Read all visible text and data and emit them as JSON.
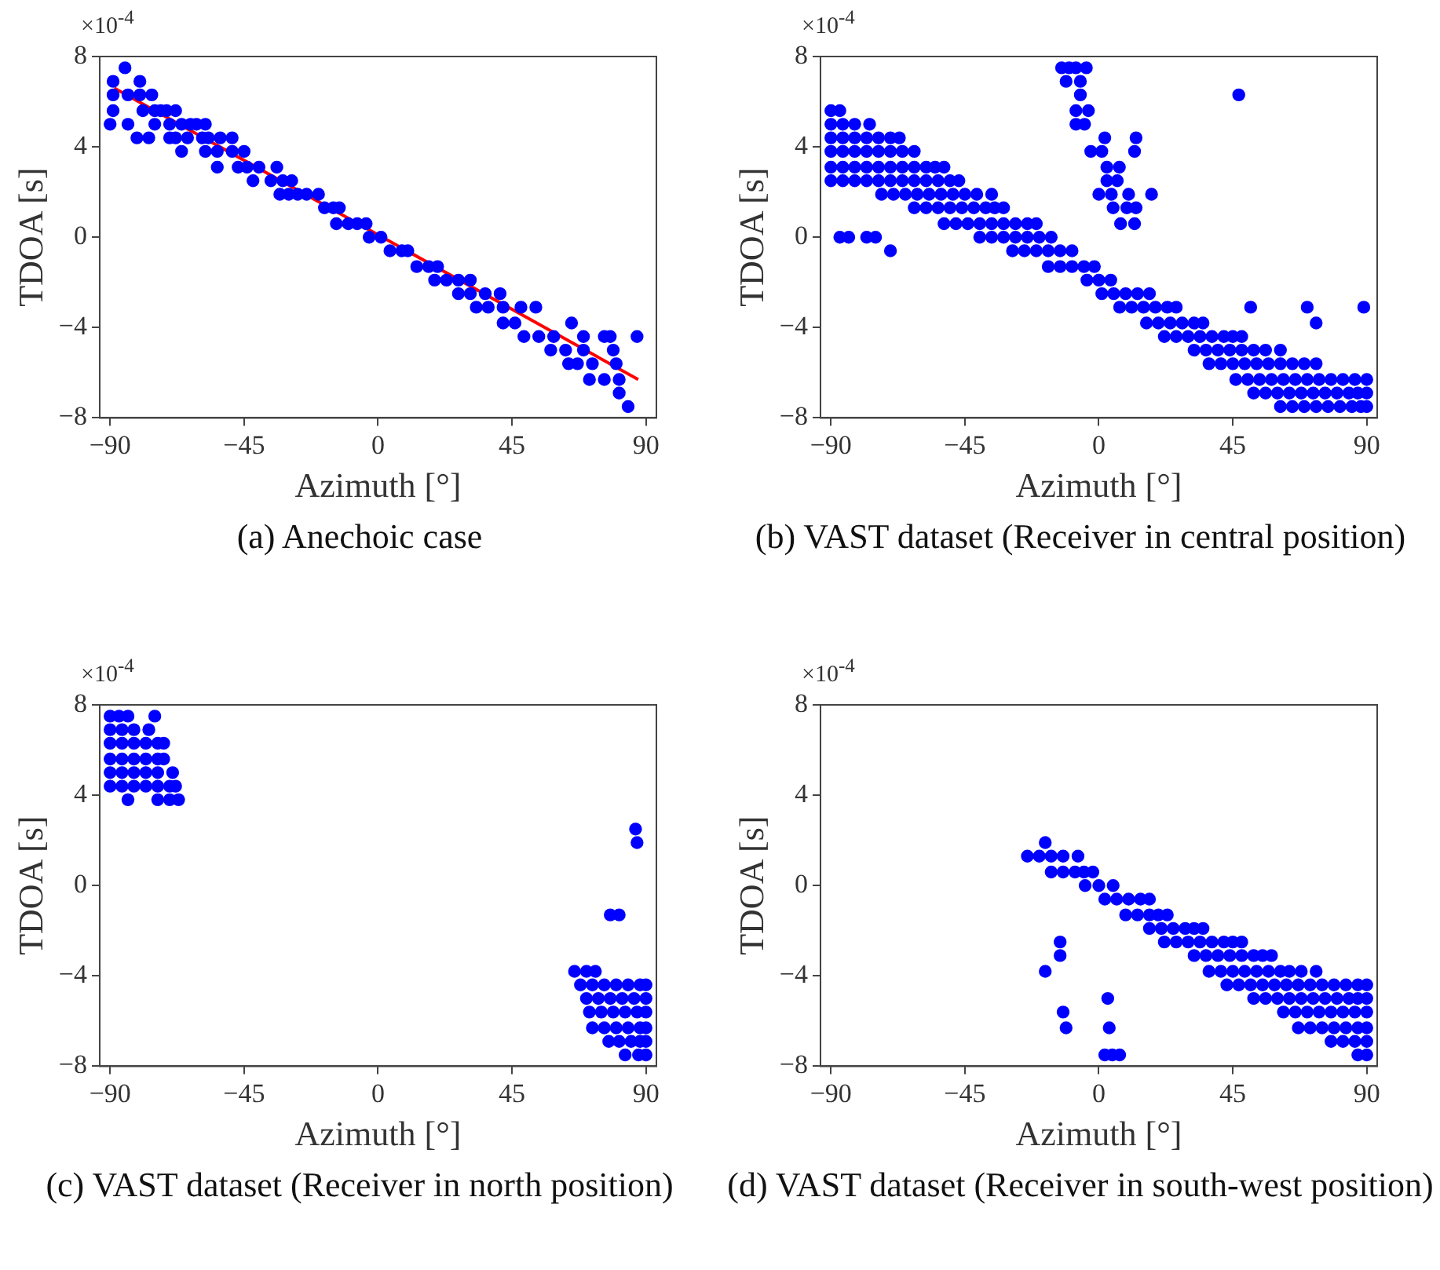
{
  "chart_data": [
    {
      "type": "scatter",
      "title": "(a) Anechoic case",
      "xlabel": "Azimuth [°]",
      "ylabel": "TDOA [s]",
      "annotations": [
        "×10$^{-4}$"
      ],
      "xlim": [
        -93.5,
        93.5
      ],
      "xticks": [
        -90,
        -45,
        0,
        45,
        90
      ],
      "ylim": [
        -8,
        8
      ],
      "yticks": [
        -8,
        -4,
        0,
        4,
        8
      ],
      "grid": false,
      "legend": false,
      "marker": "circle",
      "series": [
        {
          "color": "#0000ff",
          "x": [
            -85
          ],
          "values": [
            7.5
          ]
        },
        {
          "color": "#0000ff",
          "x": [
            -89,
            -80
          ],
          "values": [
            6.9,
            6.9
          ]
        },
        {
          "color": "#0000ff",
          "x": [
            -89,
            -84,
            -80,
            -76
          ],
          "values": [
            6.3,
            6.3,
            6.3,
            6.3
          ]
        },
        {
          "color": "#0000ff",
          "x": [
            -89,
            -79,
            -75,
            -73,
            -71,
            -68
          ],
          "values": [
            5.6,
            5.6,
            5.6,
            5.6,
            5.6,
            5.6
          ]
        },
        {
          "color": "#0000ff",
          "x": [
            -90,
            -84,
            -75,
            -70,
            -66,
            -63,
            -61,
            -58
          ],
          "values": [
            5.0,
            5.0,
            5.0,
            5.0,
            5.0,
            5.0,
            5.0,
            5.0
          ]
        },
        {
          "color": "#0000ff",
          "x": [
            -81,
            -77,
            -70,
            -68,
            -64,
            -59,
            -57,
            -53,
            -49
          ],
          "values": [
            4.4,
            4.4,
            4.4,
            4.4,
            4.4,
            4.4,
            4.4,
            4.4,
            4.4
          ]
        },
        {
          "color": "#0000ff",
          "x": [
            -66,
            -58,
            -54,
            -49,
            -45
          ],
          "values": [
            3.8,
            3.8,
            3.8,
            3.8,
            3.8
          ]
        },
        {
          "color": "#0000ff",
          "x": [
            -54,
            -47,
            -44,
            -40,
            -34
          ],
          "values": [
            3.1,
            3.1,
            3.1,
            3.1,
            3.1
          ]
        },
        {
          "color": "#0000ff",
          "x": [
            -42,
            -36,
            -32,
            -29
          ],
          "values": [
            2.5,
            2.5,
            2.5,
            2.5
          ]
        },
        {
          "color": "#0000ff",
          "x": [
            -33,
            -30,
            -27,
            -24,
            -20
          ],
          "values": [
            1.9,
            1.9,
            1.9,
            1.9,
            1.9
          ]
        },
        {
          "color": "#0000ff",
          "x": [
            -18,
            -15,
            -13
          ],
          "values": [
            1.3,
            1.3,
            1.3
          ]
        },
        {
          "color": "#0000ff",
          "x": [
            -14,
            -10,
            -7,
            -4
          ],
          "values": [
            0.6,
            0.6,
            0.6,
            0.6
          ]
        },
        {
          "color": "#0000ff",
          "x": [
            -3,
            1
          ],
          "values": [
            0,
            0
          ]
        },
        {
          "color": "#0000ff",
          "x": [
            4,
            8,
            10
          ],
          "values": [
            -0.6,
            -0.6,
            -0.6
          ]
        },
        {
          "color": "#0000ff",
          "x": [
            13,
            17,
            20
          ],
          "values": [
            -1.3,
            -1.3,
            -1.3
          ]
        },
        {
          "color": "#0000ff",
          "x": [
            19,
            23,
            27,
            31
          ],
          "values": [
            -1.9,
            -1.9,
            -1.9,
            -1.9
          ]
        },
        {
          "color": "#0000ff",
          "x": [
            27,
            31,
            36,
            41
          ],
          "values": [
            -2.5,
            -2.5,
            -2.5,
            -2.5
          ]
        },
        {
          "color": "#0000ff",
          "x": [
            33,
            37,
            42,
            48,
            53
          ],
          "values": [
            -3.1,
            -3.1,
            -3.1,
            -3.1,
            -3.1
          ]
        },
        {
          "color": "#0000ff",
          "x": [
            42,
            46,
            65
          ],
          "values": [
            -3.8,
            -3.8,
            -3.8
          ]
        },
        {
          "color": "#0000ff",
          "x": [
            49,
            54,
            59,
            69,
            76,
            78,
            87
          ],
          "values": [
            -4.4,
            -4.4,
            -4.4,
            -4.4,
            -4.4,
            -4.4,
            -4.4
          ]
        },
        {
          "color": "#0000ff",
          "x": [
            58,
            63,
            69,
            79
          ],
          "values": [
            -5.0,
            -5.0,
            -5.0,
            -5.0
          ]
        },
        {
          "color": "#0000ff",
          "x": [
            64,
            67,
            72,
            80
          ],
          "values": [
            -5.6,
            -5.6,
            -5.6,
            -5.6
          ]
        },
        {
          "color": "#0000ff",
          "x": [
            71,
            76,
            81
          ],
          "values": [
            -6.3,
            -6.3,
            -6.3
          ]
        },
        {
          "color": "#0000ff",
          "x": [
            81
          ],
          "values": [
            -6.9
          ]
        },
        {
          "color": "#0000ff",
          "x": [
            84
          ],
          "values": [
            -7.5
          ]
        },
        {
          "type": "line",
          "marker": "none",
          "color": "#ff0000",
          "x": [
            -88.6,
            87.4
          ],
          "values": [
            6.6,
            -6.3
          ]
        }
      ]
    },
    {
      "type": "scatter",
      "title": "(b) VAST dataset (Receiver in central position)",
      "xlabel": "Azimuth [°]",
      "ylabel": "TDOA [s]",
      "annotations": [
        "×10$^{-4}$"
      ],
      "xlim": [
        -93.5,
        93.5
      ],
      "xticks": [
        -90,
        -45,
        0,
        45,
        90
      ],
      "ylim": [
        -8,
        8
      ],
      "yticks": [
        -8,
        -4,
        0,
        4,
        8
      ],
      "grid": false,
      "legend": false,
      "marker": "circle",
      "series": [
        {
          "color": "#0000ff",
          "x": [
            -90,
            -87
          ],
          "values": [
            5.6,
            5.6
          ]
        },
        {
          "color": "#0000ff",
          "x": [
            -90,
            -86,
            -82,
            -77
          ],
          "values": [
            5.0,
            5.0,
            5.0,
            5.0
          ]
        },
        {
          "color": "#0000ff",
          "x": [
            -90,
            -86,
            -82,
            -78,
            -74,
            -70,
            -67
          ],
          "values": [
            4.4,
            4.4,
            4.4,
            4.4,
            4.4,
            4.4,
            4.4
          ]
        },
        {
          "color": "#0000ff",
          "x": [
            -90,
            -86,
            -82,
            -78,
            -74,
            -70,
            -66,
            -62
          ],
          "values": [
            3.8,
            3.8,
            3.8,
            3.8,
            3.8,
            3.8,
            3.8,
            3.8
          ]
        },
        {
          "color": "#0000ff",
          "x": [
            -90,
            -86,
            -82,
            -78,
            -74,
            -70,
            -66,
            -62,
            -58,
            -55,
            -52
          ],
          "values": [
            3.1,
            3.1,
            3.1,
            3.1,
            3.1,
            3.1,
            3.1,
            3.1,
            3.1,
            3.1,
            3.1
          ]
        },
        {
          "color": "#0000ff",
          "x": [
            -90,
            -86,
            -82,
            -78,
            -74,
            -70,
            -66,
            -62,
            -58,
            -54,
            -50,
            -47
          ],
          "values": [
            2.5,
            2.5,
            2.5,
            2.5,
            2.5,
            2.5,
            2.5,
            2.5,
            2.5,
            2.5,
            2.5,
            2.5
          ]
        },
        {
          "color": "#0000ff",
          "x": [
            -73,
            -69,
            -65,
            -61,
            -57,
            -53,
            -49,
            -45,
            -41,
            -36
          ],
          "values": [
            1.9,
            1.9,
            1.9,
            1.9,
            1.9,
            1.9,
            1.9,
            1.9,
            1.9,
            1.9
          ]
        },
        {
          "color": "#0000ff",
          "x": [
            -62,
            -58,
            -54,
            -50,
            -46,
            -42,
            -38,
            -35,
            -32
          ],
          "values": [
            1.3,
            1.3,
            1.3,
            1.3,
            1.3,
            1.3,
            1.3,
            1.3,
            1.3
          ]
        },
        {
          "color": "#0000ff",
          "x": [
            -52,
            -48,
            -44,
            -40,
            -36,
            -32,
            -28,
            -24,
            -21
          ],
          "values": [
            0.6,
            0.6,
            0.6,
            0.6,
            0.6,
            0.6,
            0.6,
            0.6,
            0.6
          ]
        },
        {
          "color": "#0000ff",
          "x": [
            -87,
            -84,
            -78,
            -75,
            -40,
            -36,
            -32,
            -28,
            -24,
            -20,
            -16
          ],
          "values": [
            0,
            0,
            0,
            0,
            0,
            0,
            0,
            0,
            0,
            0,
            0
          ]
        },
        {
          "color": "#0000ff",
          "x": [
            -70,
            -29,
            -25,
            -21,
            -17,
            -13,
            -9
          ],
          "values": [
            -0.6,
            -0.6,
            -0.6,
            -0.6,
            -0.6,
            -0.6,
            -0.6
          ]
        },
        {
          "color": "#0000ff",
          "x": [
            -17,
            -13,
            -9,
            -5,
            -1.5
          ],
          "values": [
            -1.3,
            -1.3,
            -1.3,
            -1.3,
            -1.3
          ]
        },
        {
          "color": "#0000ff",
          "x": [
            -4,
            0,
            4
          ],
          "values": [
            -1.9,
            -1.9,
            -1.9
          ]
        },
        {
          "color": "#0000ff",
          "x": [
            1,
            5,
            9,
            13,
            17
          ],
          "values": [
            -2.5,
            -2.5,
            -2.5,
            -2.5,
            -2.5
          ]
        },
        {
          "color": "#0000ff",
          "x": [
            7,
            11,
            15,
            19,
            23,
            26,
            51,
            70,
            89
          ],
          "values": [
            -3.1,
            -3.1,
            -3.1,
            -3.1,
            -3.1,
            -3.1,
            -3.1,
            -3.1,
            -3.1
          ]
        },
        {
          "color": "#0000ff",
          "x": [
            16,
            20,
            24,
            28,
            32,
            35,
            73
          ],
          "values": [
            -3.8,
            -3.8,
            -3.8,
            -3.8,
            -3.8,
            -3.8,
            -3.8
          ]
        },
        {
          "color": "#0000ff",
          "x": [
            22,
            26,
            30,
            34,
            38,
            42,
            45,
            48
          ],
          "values": [
            -4.4,
            -4.4,
            -4.4,
            -4.4,
            -4.4,
            -4.4,
            -4.4,
            -4.4
          ]
        },
        {
          "color": "#0000ff",
          "x": [
            32,
            36,
            40,
            44,
            48,
            52,
            56,
            61
          ],
          "values": [
            -5.0,
            -5.0,
            -5.0,
            -5.0,
            -5.0,
            -5.0,
            -5.0,
            -5.0
          ]
        },
        {
          "color": "#0000ff",
          "x": [
            37,
            41,
            45,
            49,
            53,
            57,
            61,
            65,
            69,
            73
          ],
          "values": [
            -5.6,
            -5.6,
            -5.6,
            -5.6,
            -5.6,
            -5.6,
            -5.6,
            -5.6,
            -5.6,
            -5.6
          ]
        },
        {
          "color": "#0000ff",
          "x": [
            46,
            50,
            54,
            58,
            62,
            66,
            70,
            74,
            78,
            82,
            86,
            90
          ],
          "values": [
            -6.3,
            -6.3,
            -6.3,
            -6.3,
            -6.3,
            -6.3,
            -6.3,
            -6.3,
            -6.3,
            -6.3,
            -6.3,
            -6.3
          ]
        },
        {
          "color": "#0000ff",
          "x": [
            52,
            56,
            60,
            64,
            68,
            72,
            76,
            80,
            84,
            87,
            90
          ],
          "values": [
            -6.9,
            -6.9,
            -6.9,
            -6.9,
            -6.9,
            -6.9,
            -6.9,
            -6.9,
            -6.9,
            -6.9,
            -6.9
          ]
        },
        {
          "color": "#0000ff",
          "x": [
            61,
            65,
            69,
            73,
            77,
            81,
            85,
            88,
            90
          ],
          "values": [
            -7.5,
            -7.5,
            -7.5,
            -7.5,
            -7.5,
            -7.5,
            -7.5,
            -7.5,
            -7.5
          ]
        },
        {
          "color": "#0000ff",
          "x": [
            -12.5,
            -10,
            -7.7,
            -4.2,
            -11,
            -6.2,
            -6.2,
            47,
            -7.7,
            -3.5,
            -7.7,
            -4.8
          ],
          "values": [
            7.5,
            7.5,
            7.5,
            7.5,
            6.9,
            6.9,
            6.3,
            6.3,
            5.6,
            5.6,
            5.0,
            5.0
          ]
        },
        {
          "color": "#0000ff",
          "x": [
            2,
            12.5,
            -2.7,
            1,
            12,
            2.7,
            6.9,
            2.7,
            6.2
          ],
          "values": [
            4.4,
            4.4,
            3.8,
            3.8,
            3.8,
            3.1,
            3.1,
            2.5,
            2.5
          ]
        },
        {
          "color": "#0000ff",
          "x": [
            0,
            4.2,
            10,
            17.7,
            4.8,
            9.4,
            12.5,
            7.3,
            12
          ],
          "values": [
            1.9,
            1.9,
            1.9,
            1.9,
            1.3,
            1.3,
            1.3,
            0.6,
            0.6
          ]
        }
      ]
    },
    {
      "type": "scatter",
      "title": "(c) VAST dataset (Receiver in north position)",
      "xlabel": "Azimuth [°]",
      "ylabel": "TDOA [s]",
      "annotations": [
        "×10$^{-4}$"
      ],
      "xlim": [
        -93.5,
        93.5
      ],
      "xticks": [
        -90,
        -45,
        0,
        45,
        90
      ],
      "ylim": [
        -8,
        8
      ],
      "yticks": [
        -8,
        -4,
        0,
        4,
        8
      ],
      "grid": false,
      "legend": false,
      "marker": "circle",
      "series": [
        {
          "color": "#0000ff",
          "x": [
            -90,
            -87,
            -84,
            -75
          ],
          "values": [
            7.5,
            7.5,
            7.5,
            7.5
          ]
        },
        {
          "color": "#0000ff",
          "x": [
            -90,
            -86,
            -82,
            -77
          ],
          "values": [
            6.9,
            6.9,
            6.9,
            6.9
          ]
        },
        {
          "color": "#0000ff",
          "x": [
            -90,
            -86,
            -82,
            -78,
            -74,
            -72
          ],
          "values": [
            6.3,
            6.3,
            6.3,
            6.3,
            6.3,
            6.3
          ]
        },
        {
          "color": "#0000ff",
          "x": [
            -90,
            -86,
            -82,
            -78,
            -74,
            -72
          ],
          "values": [
            5.6,
            5.6,
            5.6,
            5.6,
            5.6,
            5.6
          ]
        },
        {
          "color": "#0000ff",
          "x": [
            -90,
            -86,
            -82,
            -78,
            -74,
            -69
          ],
          "values": [
            5.0,
            5.0,
            5.0,
            5.0,
            5.0,
            5.0
          ]
        },
        {
          "color": "#0000ff",
          "x": [
            -90,
            -86,
            -82,
            -78,
            -74,
            -70,
            -68
          ],
          "values": [
            4.4,
            4.4,
            4.4,
            4.4,
            4.4,
            4.4,
            4.4
          ]
        },
        {
          "color": "#0000ff",
          "x": [
            -84,
            -74,
            -70,
            -67
          ],
          "values": [
            3.8,
            3.8,
            3.8,
            3.8
          ]
        },
        {
          "color": "#0000ff",
          "x": [
            86.5,
            87,
            78,
            81
          ],
          "values": [
            2.5,
            1.9,
            -1.3,
            -1.3
          ]
        },
        {
          "color": "#0000ff",
          "x": [
            66,
            70,
            73
          ],
          "values": [
            -3.8,
            -3.8,
            -3.8
          ]
        },
        {
          "color": "#0000ff",
          "x": [
            68,
            72,
            76,
            80,
            84,
            88,
            90
          ],
          "values": [
            -4.4,
            -4.4,
            -4.4,
            -4.4,
            -4.4,
            -4.4,
            -4.4
          ]
        },
        {
          "color": "#0000ff",
          "x": [
            70,
            74,
            78,
            82,
            86,
            90
          ],
          "values": [
            -5.0,
            -5.0,
            -5.0,
            -5.0,
            -5.0,
            -5.0
          ]
        },
        {
          "color": "#0000ff",
          "x": [
            71,
            75,
            79,
            83,
            87,
            90
          ],
          "values": [
            -5.6,
            -5.6,
            -5.6,
            -5.6,
            -5.6,
            -5.6
          ]
        },
        {
          "color": "#0000ff",
          "x": [
            72,
            76,
            80,
            84,
            88,
            90
          ],
          "values": [
            -6.3,
            -6.3,
            -6.3,
            -6.3,
            -6.3,
            -6.3
          ]
        },
        {
          "color": "#0000ff",
          "x": [
            77.5,
            81,
            85,
            88,
            90
          ],
          "values": [
            -6.9,
            -6.9,
            -6.9,
            -6.9,
            -6.9
          ]
        },
        {
          "color": "#0000ff",
          "x": [
            83,
            87.5,
            90
          ],
          "values": [
            -7.5,
            -7.5,
            -7.5
          ]
        }
      ]
    },
    {
      "type": "scatter",
      "title": "(d) VAST dataset (Receiver in south-west position)",
      "xlabel": "Azimuth [°]",
      "ylabel": "TDOA [s]",
      "annotations": [
        "×10$^{-4}$"
      ],
      "xlim": [
        -93.5,
        93.5
      ],
      "xticks": [
        -90,
        -45,
        0,
        45,
        90
      ],
      "ylim": [
        -8,
        8
      ],
      "yticks": [
        -8,
        -4,
        0,
        4,
        8
      ],
      "grid": false,
      "legend": false,
      "marker": "circle",
      "series": [
        {
          "color": "#0000ff",
          "x": [
            -18
          ],
          "values": [
            1.9
          ]
        },
        {
          "color": "#0000ff",
          "x": [
            -24,
            -20,
            -16,
            -12,
            -7
          ],
          "values": [
            1.3,
            1.3,
            1.3,
            1.3,
            1.3
          ]
        },
        {
          "color": "#0000ff",
          "x": [
            -16,
            -12,
            -8,
            -5,
            -2
          ],
          "values": [
            0.6,
            0.6,
            0.6,
            0.6,
            0.6
          ]
        },
        {
          "color": "#0000ff",
          "x": [
            -4.6,
            0,
            4.8
          ],
          "values": [
            0,
            0,
            0
          ]
        },
        {
          "color": "#0000ff",
          "x": [
            2,
            6,
            10,
            14,
            17
          ],
          "values": [
            -0.6,
            -0.6,
            -0.6,
            -0.6,
            -0.6
          ]
        },
        {
          "color": "#0000ff",
          "x": [
            9,
            13,
            17,
            20,
            23
          ],
          "values": [
            -1.3,
            -1.3,
            -1.3,
            -1.3,
            -1.3
          ]
        },
        {
          "color": "#0000ff",
          "x": [
            17,
            21,
            25,
            29,
            32,
            35
          ],
          "values": [
            -1.9,
            -1.9,
            -1.9,
            -1.9,
            -1.9,
            -1.9
          ]
        },
        {
          "color": "#0000ff",
          "x": [
            -13,
            22,
            26,
            30,
            34,
            38,
            42,
            45,
            48
          ],
          "values": [
            -2.5,
            -2.5,
            -2.5,
            -2.5,
            -2.5,
            -2.5,
            -2.5,
            -2.5,
            -2.5
          ]
        },
        {
          "color": "#0000ff",
          "x": [
            -13,
            32,
            36,
            40,
            44,
            48,
            52,
            55,
            58
          ],
          "values": [
            -3.1,
            -3.1,
            -3.1,
            -3.1,
            -3.1,
            -3.1,
            -3.1,
            -3.1,
            -3.1
          ]
        },
        {
          "color": "#0000ff",
          "x": [
            -18,
            37,
            41,
            45,
            49,
            53,
            57,
            61,
            64,
            68,
            73
          ],
          "values": [
            -3.8,
            -3.8,
            -3.8,
            -3.8,
            -3.8,
            -3.8,
            -3.8,
            -3.8,
            -3.8,
            -3.8,
            -3.8
          ]
        },
        {
          "color": "#0000ff",
          "x": [
            43,
            47,
            51,
            55,
            59,
            63,
            67,
            71,
            75,
            79,
            83,
            87,
            90
          ],
          "values": [
            -4.4,
            -4.4,
            -4.4,
            -4.4,
            -4.4,
            -4.4,
            -4.4,
            -4.4,
            -4.4,
            -4.4,
            -4.4,
            -4.4,
            -4.4
          ]
        },
        {
          "color": "#0000ff",
          "x": [
            3,
            52,
            56,
            60,
            64,
            68,
            72,
            76,
            80,
            84,
            87,
            90
          ],
          "values": [
            -5.0,
            -5.0,
            -5.0,
            -5.0,
            -5.0,
            -5.0,
            -5.0,
            -5.0,
            -5.0,
            -5.0,
            -5.0,
            -5.0
          ]
        },
        {
          "color": "#0000ff",
          "x": [
            -12,
            62,
            66,
            70,
            74,
            78,
            82,
            86,
            90
          ],
          "values": [
            -5.6,
            -5.6,
            -5.6,
            -5.6,
            -5.6,
            -5.6,
            -5.6,
            -5.6,
            -5.6
          ]
        },
        {
          "color": "#0000ff",
          "x": [
            -11,
            3.5,
            67,
            71,
            75,
            79,
            83,
            87,
            90
          ],
          "values": [
            -6.3,
            -6.3,
            -6.3,
            -6.3,
            -6.3,
            -6.3,
            -6.3,
            -6.3,
            -6.3
          ]
        },
        {
          "color": "#0000ff",
          "x": [
            78,
            82,
            86,
            90
          ],
          "values": [
            -6.9,
            -6.9,
            -6.9,
            -6.9
          ]
        },
        {
          "color": "#0000ff",
          "x": [
            2,
            4.5,
            7,
            87,
            90
          ],
          "values": [
            -7.5,
            -7.5,
            -7.5,
            -7.5,
            -7.5
          ]
        }
      ]
    }
  ]
}
